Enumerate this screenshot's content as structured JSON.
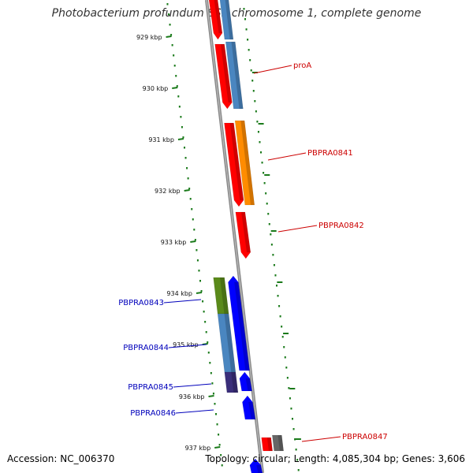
{
  "title": "Photobacterium profundum SS9 chromosome 1, complete genome",
  "footer": {
    "accession": "Accession: NC_006370",
    "summary": "Topology: circular; Length: 4,085,304 bp; Genes: 3,606"
  },
  "colors": {
    "backbone": "#888888",
    "tick": "#1a7a1a",
    "forward_label": "#cc0000",
    "reverse_label": "#0000bb"
  },
  "ticks": [
    "929 kbp",
    "930 kbp",
    "931 kbp",
    "932 kbp",
    "933 kbp",
    "934 kbp",
    "935 kbp",
    "936 kbp",
    "937 kbp"
  ],
  "genes": [
    {
      "label": "proA",
      "strand": "forward"
    },
    {
      "label": "PBPRA0841",
      "strand": "forward"
    },
    {
      "label": "PBPRA0842",
      "strand": "forward"
    },
    {
      "label": "PBPRA0843",
      "strand": "reverse"
    },
    {
      "label": "PBPRA0844",
      "strand": "reverse"
    },
    {
      "label": "PBPRA0845",
      "strand": "reverse"
    },
    {
      "label": "PBPRA0846",
      "strand": "reverse"
    },
    {
      "label": "PBPRA0847",
      "strand": "forward"
    }
  ]
}
